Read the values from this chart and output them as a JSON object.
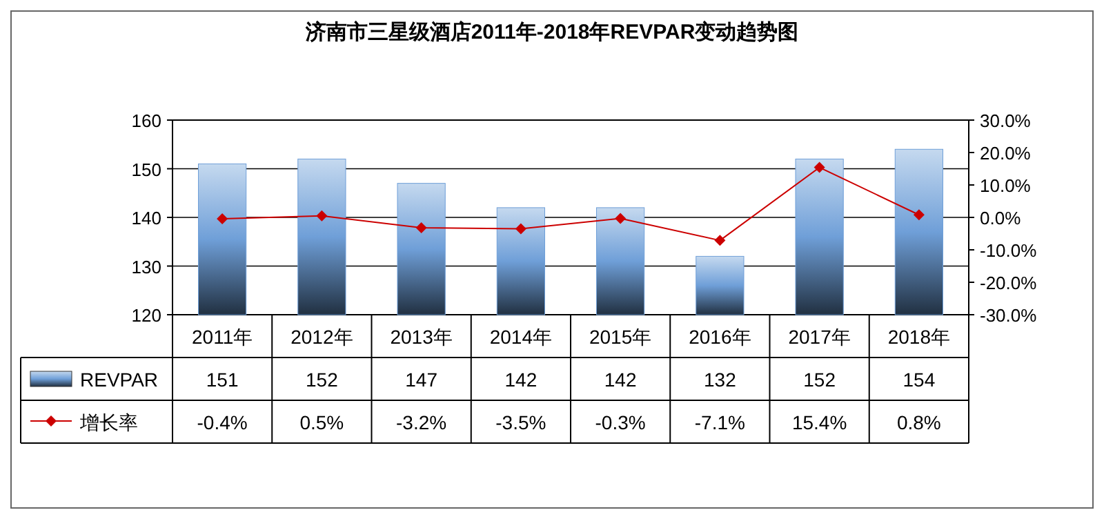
{
  "chart_data": {
    "type": "bar",
    "title": "济南市三星级酒店2011年-2018年REVPAR变动趋势图",
    "categories": [
      "2011年",
      "2012年",
      "2013年",
      "2014年",
      "2015年",
      "2016年",
      "2017年",
      "2018年"
    ],
    "series": [
      {
        "name": "REVPAR",
        "color": "#6f9fd8",
        "values": [
          151,
          152,
          147,
          142,
          142,
          132,
          152,
          154
        ],
        "value_labels": [
          "151",
          "152",
          "147",
          "142",
          "142",
          "132",
          "152",
          "154"
        ]
      },
      {
        "name": "增长率",
        "type": "line",
        "axis": "y2",
        "color": "#cc0000",
        "marker": "diamond",
        "values": [
          -0.4,
          0.5,
          -3.2,
          -3.5,
          -0.3,
          -7.1,
          15.4,
          0.8
        ],
        "value_labels": [
          "-0.4%",
          "0.5%",
          "-3.2%",
          "-3.5%",
          "-0.3%",
          "-7.1%",
          "15.4%",
          "0.8%"
        ]
      }
    ],
    "ylim": [
      120,
      160
    ],
    "yticks": [
      120,
      130,
      140,
      150,
      160
    ],
    "y2lim": [
      -30,
      30
    ],
    "y2ticks": [
      {
        "value": 30,
        "label": "30.0%"
      },
      {
        "value": 20,
        "label": "20.0%"
      },
      {
        "value": 10,
        "label": "10.0%"
      },
      {
        "value": 0,
        "label": "0.0%"
      },
      {
        "value": -10,
        "label": "-10.0%"
      },
      {
        "value": -20,
        "label": "-20.0%"
      },
      {
        "value": -30,
        "label": "-30.0%"
      }
    ],
    "grid": "y",
    "legend": "bottom"
  }
}
